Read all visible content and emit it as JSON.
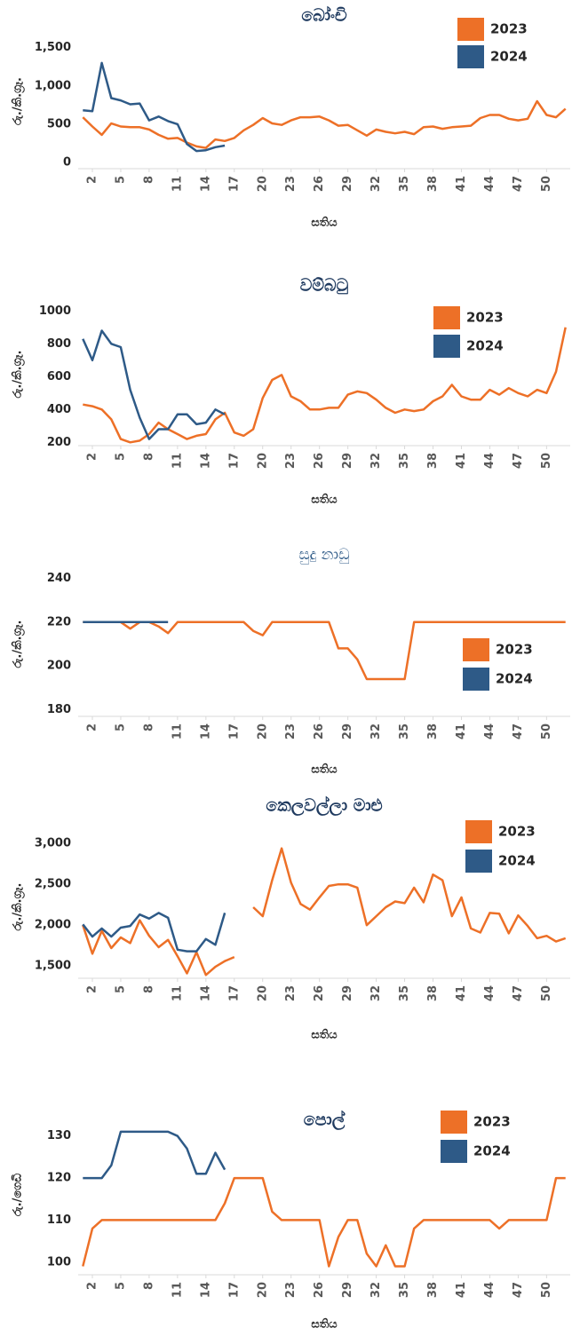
{
  "chart_data": [
    {
      "type": "line",
      "title": "බෝංචි",
      "ylabel": "රු./කි.ග්‍රෑ.",
      "xlabel": "සතිය",
      "legend": "upper right",
      "title_weight": "bold",
      "x": [
        1,
        2,
        3,
        4,
        5,
        6,
        7,
        8,
        9,
        10,
        11,
        12,
        13,
        14,
        15,
        16,
        17,
        18,
        19,
        20,
        21,
        22,
        23,
        24,
        25,
        26,
        27,
        28,
        29,
        30,
        31,
        32,
        33,
        34,
        35,
        36,
        37,
        38,
        39,
        40,
        41,
        42,
        43,
        44,
        45,
        46,
        47,
        48,
        49,
        50,
        51,
        52
      ],
      "xlim": [
        0.5,
        52.5
      ],
      "xticks": [
        2,
        5,
        8,
        11,
        14,
        17,
        20,
        23,
        26,
        29,
        32,
        35,
        38,
        41,
        44,
        47,
        50
      ],
      "ylim": [
        0,
        1600
      ],
      "yticks": [
        0,
        500,
        {
          "value": 1000,
          "label": "1,000"
        },
        {
          "value": 1500,
          "label": "1,500"
        }
      ],
      "series": [
        {
          "name": "2023",
          "color": "#ed7027",
          "values": [
            590,
            470,
            360,
            510,
            470,
            460,
            460,
            430,
            360,
            310,
            320,
            260,
            210,
            190,
            300,
            280,
            320,
            420,
            490,
            580,
            510,
            490,
            550,
            590,
            590,
            600,
            550,
            480,
            490,
            420,
            350,
            430,
            400,
            380,
            400,
            370,
            460,
            470,
            440,
            460,
            470,
            480,
            580,
            620,
            620,
            570,
            550,
            570,
            800,
            620,
            590,
            700
          ]
        },
        {
          "name": "2024",
          "color": "#2e5a87",
          "values": [
            680,
            670,
            1300,
            840,
            810,
            760,
            770,
            550,
            600,
            540,
            500,
            240,
            150,
            160,
            200,
            220,
            null,
            null,
            null,
            null,
            null,
            null,
            null,
            null,
            null,
            null,
            null,
            null,
            null,
            null,
            null,
            null,
            null,
            null,
            null,
            null,
            null,
            null,
            null,
            null,
            null,
            null,
            null,
            null,
            null,
            null,
            null,
            null,
            null,
            null,
            null,
            null
          ]
        }
      ]
    },
    {
      "type": "line",
      "title": "වම්බටු",
      "ylabel": "රු./කි.ග්‍රෑ.",
      "xlabel": "සතිය",
      "legend": "upper right",
      "title_weight": "bold",
      "x": [
        1,
        2,
        3,
        4,
        5,
        6,
        7,
        8,
        9,
        10,
        11,
        12,
        13,
        14,
        15,
        16,
        17,
        18,
        19,
        20,
        21,
        22,
        23,
        24,
        25,
        26,
        27,
        28,
        29,
        30,
        31,
        32,
        33,
        34,
        35,
        36,
        37,
        38,
        39,
        40,
        41,
        42,
        43,
        44,
        45,
        46,
        47,
        48,
        49,
        50,
        51,
        52
      ],
      "xlim": [
        0.5,
        52.5
      ],
      "xticks": [
        2,
        5,
        8,
        11,
        14,
        17,
        20,
        23,
        26,
        29,
        32,
        35,
        38,
        41,
        44,
        47,
        50
      ],
      "ylim": [
        180,
        1050
      ],
      "yticks": [
        200,
        400,
        600,
        800,
        1000
      ],
      "series": [
        {
          "name": "2023",
          "color": "#ed7027",
          "values": [
            430,
            420,
            400,
            340,
            220,
            200,
            210,
            250,
            320,
            280,
            250,
            220,
            240,
            250,
            340,
            380,
            260,
            240,
            280,
            470,
            580,
            610,
            480,
            450,
            400,
            400,
            410,
            410,
            490,
            510,
            500,
            460,
            410,
            380,
            400,
            390,
            400,
            450,
            480,
            550,
            480,
            460,
            460,
            520,
            490,
            530,
            500,
            480,
            520,
            500,
            630,
            900
          ]
        },
        {
          "name": "2024",
          "color": "#2e5a87",
          "values": [
            830,
            700,
            880,
            800,
            780,
            520,
            350,
            220,
            280,
            280,
            370,
            370,
            310,
            320,
            400,
            370,
            null,
            null,
            null,
            null,
            null,
            null,
            null,
            null,
            null,
            null,
            null,
            null,
            null,
            null,
            null,
            null,
            null,
            null,
            null,
            null,
            null,
            null,
            null,
            null,
            null,
            null,
            null,
            null,
            null,
            null,
            null,
            null,
            null,
            null,
            null,
            null
          ]
        }
      ]
    },
    {
      "type": "line",
      "title": "සුදු නාඩු",
      "ylabel": "රු./කි.ග්‍රෑ.",
      "xlabel": "සතිය",
      "legend": "lower right",
      "title_weight": "normal",
      "x": [
        1,
        2,
        3,
        4,
        5,
        6,
        7,
        8,
        9,
        10,
        11,
        12,
        13,
        14,
        15,
        16,
        17,
        18,
        19,
        20,
        21,
        22,
        23,
        24,
        25,
        26,
        27,
        28,
        29,
        30,
        31,
        32,
        33,
        34,
        35,
        36,
        37,
        38,
        39,
        40,
        41,
        42,
        43,
        44,
        45,
        46,
        47,
        48,
        49,
        50,
        51,
        52
      ],
      "xlim": [
        0.5,
        52.5
      ],
      "xticks": [
        2,
        5,
        8,
        11,
        14,
        17,
        20,
        23,
        26,
        29,
        32,
        35,
        38,
        41,
        44,
        47,
        50
      ],
      "ylim": [
        177,
        243
      ],
      "yticks": [
        180,
        200,
        220,
        240
      ],
      "series": [
        {
          "name": "2023",
          "color": "#ed7027",
          "values": [
            220,
            220,
            220,
            220,
            220,
            217,
            220,
            220,
            218,
            215,
            220,
            220,
            220,
            220,
            220,
            220,
            220,
            220,
            216,
            214,
            220,
            220,
            220,
            220,
            220,
            220,
            220,
            208,
            208,
            203,
            194,
            194,
            194,
            194,
            194,
            220,
            220,
            220,
            220,
            220,
            220,
            220,
            220,
            220,
            220,
            220,
            220,
            220,
            220,
            220,
            220,
            220
          ]
        },
        {
          "name": "2024",
          "color": "#2e5a87",
          "values": [
            220,
            220,
            220,
            220,
            220,
            220,
            220,
            220,
            220,
            220,
            null,
            null,
            null,
            null,
            null,
            null,
            null,
            null,
            null,
            null,
            null,
            null,
            null,
            null,
            null,
            null,
            null,
            null,
            null,
            null,
            null,
            null,
            null,
            null,
            null,
            null,
            null,
            null,
            null,
            null,
            null,
            null,
            null,
            null,
            null,
            null,
            null,
            null,
            null,
            null,
            null,
            null
          ]
        }
      ]
    },
    {
      "type": "line",
      "title": "කෙලවල්ලා මාළු",
      "ylabel": "රු./කි.ග්‍රෑ.",
      "xlabel": "සතිය",
      "legend": "upper right",
      "title_weight": "bold",
      "x": [
        1,
        2,
        3,
        4,
        5,
        6,
        7,
        8,
        9,
        10,
        11,
        12,
        13,
        14,
        15,
        16,
        17,
        18,
        19,
        20,
        21,
        22,
        23,
        24,
        25,
        26,
        27,
        28,
        29,
        30,
        31,
        32,
        33,
        34,
        35,
        36,
        37,
        38,
        39,
        40,
        41,
        42,
        43,
        44,
        45,
        46,
        47,
        48,
        49,
        50,
        51,
        52
      ],
      "xlim": [
        0.5,
        52.5
      ],
      "xticks": [
        2,
        5,
        8,
        11,
        14,
        17,
        20,
        23,
        26,
        29,
        32,
        35,
        38,
        41,
        44,
        47,
        50
      ],
      "ylim": [
        1350,
        3100
      ],
      "yticks": [
        {
          "value": 1500,
          "label": "1,500"
        },
        {
          "value": 2000,
          "label": "2,000"
        },
        {
          "value": 2500,
          "label": "2,500"
        },
        {
          "value": 3000,
          "label": "3,000"
        }
      ],
      "series": [
        {
          "name": "2023",
          "color": "#ed7027",
          "values": [
            2000,
            1650,
            1930,
            1720,
            1850,
            1780,
            2060,
            1870,
            1730,
            1820,
            1620,
            1410,
            1670,
            1390,
            1490,
            1560,
            1610,
            null,
            2220,
            2110,
            2550,
            2940,
            2520,
            2260,
            2190,
            2340,
            2480,
            2500,
            2500,
            2460,
            2000,
            2110,
            2220,
            2290,
            2270,
            2460,
            2280,
            2620,
            2550,
            2110,
            2340,
            1960,
            1910,
            2150,
            2140,
            1900,
            2120,
            1990,
            1840,
            1870,
            1800,
            1840
          ]
        },
        {
          "name": "2024",
          "color": "#2e5a87",
          "values": [
            2010,
            1860,
            1960,
            1860,
            1970,
            1990,
            2130,
            2080,
            2150,
            2090,
            1700,
            1680,
            1680,
            1830,
            1760,
            2150,
            null,
            null,
            null,
            null,
            null,
            null,
            null,
            null,
            null,
            null,
            null,
            null,
            null,
            null,
            null,
            null,
            null,
            null,
            null,
            null,
            null,
            null,
            null,
            null,
            null,
            null,
            null,
            null,
            null,
            null,
            null,
            null,
            null,
            null,
            null,
            null
          ]
        }
      ]
    },
    {
      "type": "line",
      "title": "පොල්",
      "ylabel": "රු./ගෙඩි",
      "xlabel": "සතිය",
      "legend": "upper right",
      "title_weight": "bold",
      "x": [
        1,
        2,
        3,
        4,
        5,
        6,
        7,
        8,
        9,
        10,
        11,
        12,
        13,
        14,
        15,
        16,
        17,
        18,
        19,
        20,
        21,
        22,
        23,
        24,
        25,
        26,
        27,
        28,
        29,
        30,
        31,
        32,
        33,
        34,
        35,
        36,
        37,
        38,
        39,
        40,
        41,
        42,
        43,
        44,
        45,
        46,
        47,
        48,
        49,
        50,
        51,
        52
      ],
      "xlim": [
        0.5,
        52.5
      ],
      "xticks": [
        2,
        5,
        8,
        11,
        14,
        17,
        20,
        23,
        26,
        29,
        32,
        35,
        38,
        41,
        44,
        47,
        50
      ],
      "ylim": [
        97,
        135
      ],
      "yticks": [
        100,
        110,
        120,
        130
      ],
      "series": [
        {
          "name": "2023",
          "color": "#ed7027",
          "values": [
            99,
            108,
            110,
            110,
            110,
            110,
            110,
            110,
            110,
            110,
            110,
            110,
            110,
            110,
            110,
            114,
            120,
            120,
            120,
            120,
            112,
            110,
            110,
            110,
            110,
            110,
            99,
            106,
            110,
            110,
            102,
            99,
            104,
            99,
            99,
            108,
            110,
            110,
            110,
            110,
            110,
            110,
            110,
            110,
            108,
            110,
            110,
            110,
            110,
            110,
            120,
            120
          ]
        },
        {
          "name": "2024",
          "color": "#2e5a87",
          "values": [
            120,
            120,
            120,
            123,
            131,
            131,
            131,
            131,
            131,
            131,
            130,
            127,
            121,
            121,
            126,
            122,
            null,
            null,
            null,
            null,
            null,
            null,
            null,
            null,
            null,
            null,
            null,
            null,
            null,
            null,
            null,
            null,
            null,
            null,
            null,
            null,
            null,
            null,
            null,
            null,
            null,
            null,
            null,
            null,
            null,
            null,
            null,
            null,
            null,
            null,
            null,
            null
          ]
        }
      ]
    }
  ]
}
